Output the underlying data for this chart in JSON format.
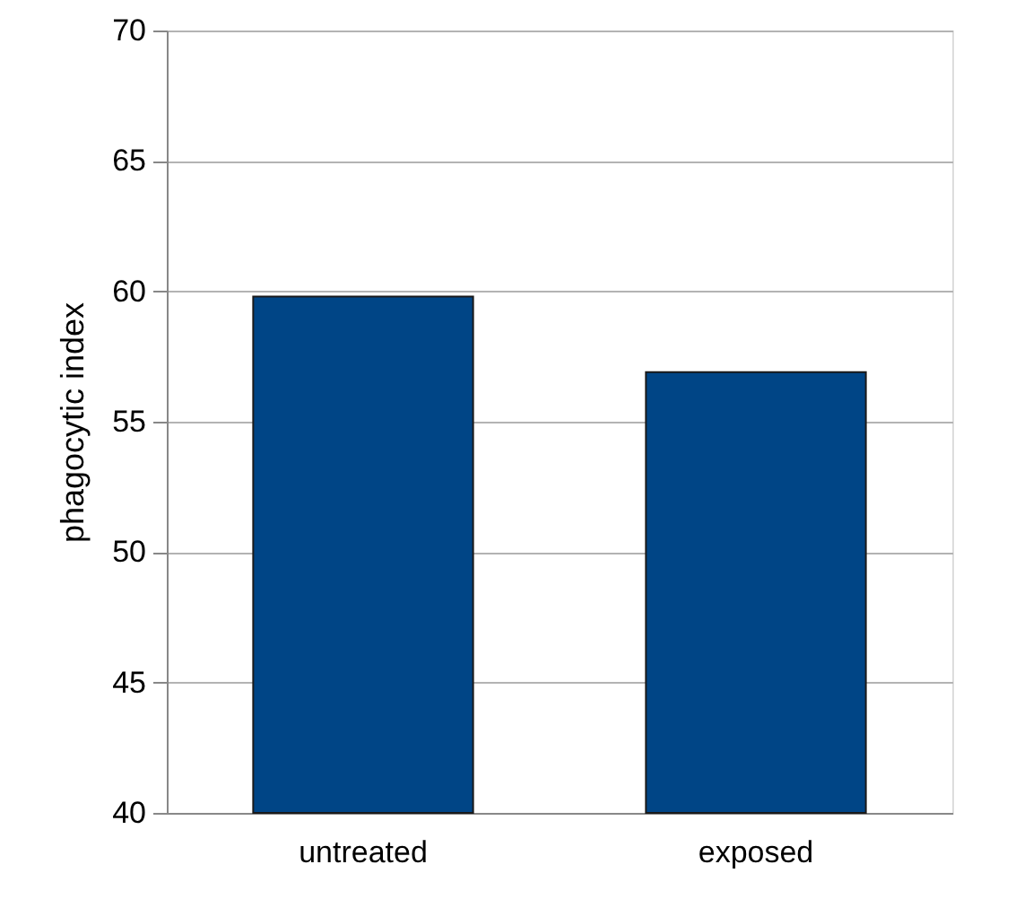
{
  "chart_data": {
    "type": "bar",
    "ylabel": "phagocytic index",
    "categories": [
      "untreated",
      "exposed"
    ],
    "values": [
      59.8,
      56.9
    ],
    "color": "#004586",
    "ylim": [
      40,
      70
    ],
    "yticks": [
      40,
      45,
      50,
      55,
      60,
      65,
      70
    ],
    "grid": "y"
  }
}
